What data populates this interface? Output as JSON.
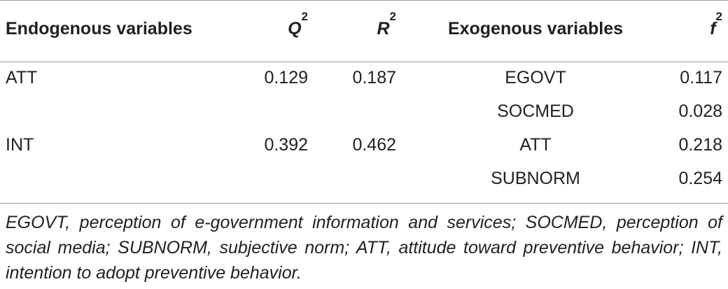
{
  "table": {
    "header": [
      {
        "text": "Endogenous variables"
      },
      {
        "text": "Q",
        "sup": "2"
      },
      {
        "text": "R",
        "sup": "2"
      },
      {
        "text": "Exogenous variables"
      },
      {
        "text": "f",
        "sup": "2"
      }
    ],
    "rows": [
      {
        "endogenous": "ATT",
        "q2": "0.129",
        "r2": "0.187",
        "exogenous": "EGOVT",
        "f2": "0.117"
      },
      {
        "exogenous": "SOCMED",
        "f2": "0.028"
      },
      {
        "endogenous": "INT",
        "q2": "0.392",
        "r2": "0.462",
        "exogenous": "ATT",
        "f2": "0.218"
      },
      {
        "exogenous": "SUBNORM",
        "f2": "0.254"
      }
    ],
    "footnote": "EGOVT, perception of e-government information and services; SOCMED, perception of social media; SUBNORM, subjective norm; ATT, attitude toward preventive behavior; INT, intention to adopt preventive behavior."
  }
}
